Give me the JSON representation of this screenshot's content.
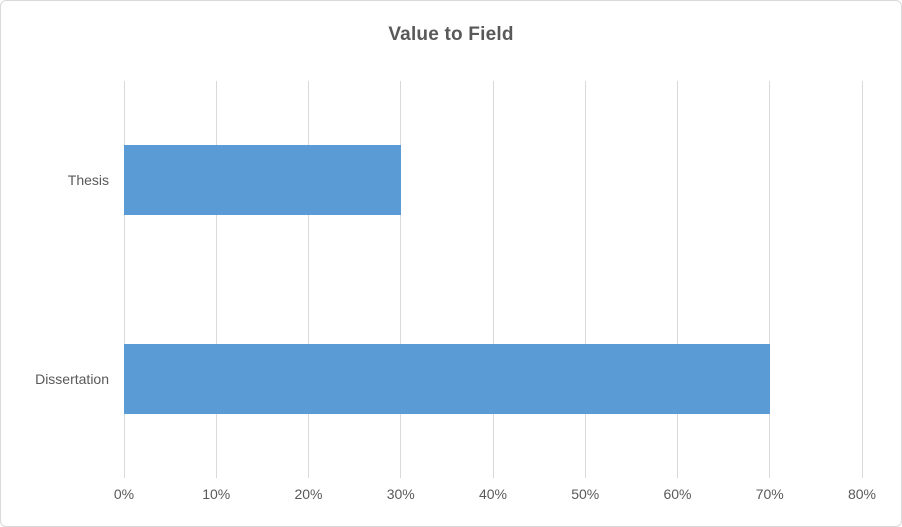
{
  "chart_data": {
    "type": "bar",
    "orientation": "horizontal",
    "title": "Value to Field",
    "categories": [
      "Thesis",
      "Dissertation"
    ],
    "values": [
      30,
      70
    ],
    "value_unit": "%",
    "x_ticks": [
      "0%",
      "10%",
      "20%",
      "30%",
      "40%",
      "50%",
      "60%",
      "70%",
      "80%"
    ],
    "xlim": [
      0,
      80
    ],
    "grid": true,
    "legend": "none",
    "colors": {
      "bar": "#5B9BD5",
      "gridline": "#D9D9D9",
      "axis_text": "#595959",
      "title_text": "#595959",
      "chart_border": "#D9D9D9",
      "background": "#FFFFFF"
    }
  }
}
